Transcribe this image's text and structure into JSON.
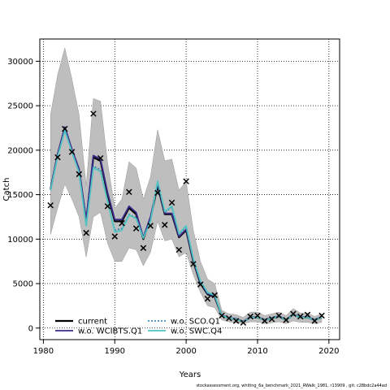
{
  "footer": "stockassessment.org, whiting_6a_benchmark_2021_RWalk_1981, r13909 , git: c28bdc2a44ad",
  "chart_data": {
    "type": "line",
    "title": "",
    "xlabel": "Years",
    "ylabel": "Catch",
    "xlim": [
      1979.5,
      2021.5
    ],
    "ylim": [
      -1300,
      32500
    ],
    "xticks": [
      1980,
      1990,
      2000,
      2010,
      2020
    ],
    "yticks": [
      0,
      5000,
      10000,
      15000,
      20000,
      25000,
      30000
    ],
    "grid": true,
    "grid_style": "dotted",
    "legend_position": "bottom-left",
    "x": [
      1981,
      1982,
      1983,
      1984,
      1985,
      1986,
      1987,
      1988,
      1989,
      1990,
      1991,
      1992,
      1993,
      1994,
      1995,
      1996,
      1997,
      1998,
      1999,
      2000,
      2001,
      2002,
      2003,
      2004,
      2005,
      2006,
      2007,
      2008,
      2009,
      2010,
      2011,
      2012,
      2013,
      2014,
      2015,
      2016,
      2017,
      2018,
      2019
    ],
    "band": {
      "color": "#bebebe",
      "upper": [
        24000,
        28500,
        31500,
        28000,
        24000,
        16000,
        25800,
        25500,
        18500,
        13500,
        14500,
        18700,
        18000,
        14500,
        17000,
        22300,
        18800,
        19000,
        15500,
        16500,
        11000,
        7500,
        5500,
        5000,
        2000,
        1600,
        1500,
        1200,
        1800,
        1800,
        1400,
        1600,
        1800,
        1400,
        2200,
        1700,
        1700,
        1300,
        1600
      ],
      "lower": [
        10500,
        13500,
        16200,
        14500,
        12500,
        8000,
        12500,
        13000,
        9500,
        7500,
        7500,
        9000,
        8800,
        7000,
        8500,
        12000,
        9800,
        10000,
        8000,
        8500,
        6000,
        4000,
        2500,
        2300,
        900,
        700,
        600,
        500,
        700,
        700,
        500,
        600,
        700,
        500,
        800,
        650,
        650,
        500,
        650
      ]
    },
    "series": [
      {
        "name": "current",
        "color": "#000000",
        "dash": "solid",
        "values": [
          15600,
          19500,
          22500,
          20000,
          17800,
          12000,
          19200,
          18800,
          15000,
          12000,
          12000,
          13500,
          12800,
          10000,
          12300,
          16000,
          12800,
          12800,
          10200,
          11000,
          7500,
          5000,
          3800,
          3500,
          1400,
          1100,
          1000,
          700,
          1200,
          1200,
          900,
          1100,
          1300,
          900,
          1500,
          1200,
          1200,
          900,
          1200
        ]
      },
      {
        "name": "w.o. WCIBTS.Q1",
        "color": "#3b2a8c",
        "dash": "solid",
        "values": [
          15700,
          19600,
          22600,
          20100,
          17900,
          12200,
          19400,
          19000,
          15200,
          12200,
          12200,
          13700,
          13000,
          10200,
          12500,
          16200,
          12900,
          12900,
          10300,
          11100,
          7600,
          5100,
          3900,
          3600,
          1450,
          1150,
          1050,
          750,
          1250,
          1250,
          950,
          1150,
          1350,
          950,
          1550,
          1250,
          1250,
          950,
          1250
        ]
      },
      {
        "name": "w.o. SCO.Q1",
        "color": "#1f78b4",
        "dash": "dotted",
        "values": [
          15500,
          19300,
          22300,
          19800,
          17500,
          11600,
          18200,
          17800,
          14300,
          11000,
          11200,
          12800,
          12400,
          10200,
          12200,
          16500,
          13000,
          13600,
          10500,
          11400,
          7700,
          5200,
          3900,
          3600,
          1400,
          1100,
          1000,
          700,
          1200,
          1200,
          900,
          1100,
          1300,
          900,
          1500,
          1200,
          1200,
          900,
          1200
        ]
      },
      {
        "name": "w.o. SWC.Q4",
        "color": "#4fc4c1",
        "dash": "solid",
        "values": [
          15500,
          19300,
          22200,
          19800,
          17500,
          11500,
          18000,
          17600,
          14200,
          10800,
          11000,
          12700,
          12300,
          10100,
          12000,
          16500,
          13100,
          13700,
          10600,
          11500,
          7800,
          5300,
          4000,
          3700,
          1400,
          1100,
          1000,
          700,
          1200,
          1200,
          900,
          1100,
          1300,
          900,
          1500,
          1200,
          1200,
          900,
          1200
        ]
      }
    ],
    "observations": {
      "marker": "x",
      "x": [
        1981,
        1982,
        1983,
        1984,
        1985,
        1986,
        1987,
        1988,
        1989,
        1990,
        1991,
        1992,
        1993,
        1994,
        1995,
        1996,
        1997,
        1998,
        1999,
        2000,
        2001,
        2002,
        2003,
        2004,
        2005,
        2006,
        2007,
        2008,
        2009,
        2010,
        2011,
        2012,
        2013,
        2014,
        2015,
        2016,
        2017,
        2018,
        2019
      ],
      "y": [
        13800,
        19200,
        22400,
        19800,
        17300,
        10700,
        24100,
        19100,
        13700,
        10300,
        11800,
        15300,
        11200,
        9000,
        11500,
        15200,
        11600,
        14100,
        8800,
        16500,
        7200,
        4900,
        3300,
        3700,
        1400,
        1100,
        800,
        600,
        1300,
        1400,
        800,
        1000,
        1400,
        900,
        1600,
        1300,
        1500,
        800,
        1400
      ]
    }
  }
}
